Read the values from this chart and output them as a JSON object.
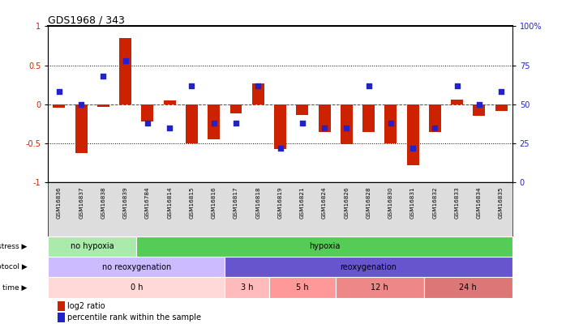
{
  "title": "GDS1968 / 343",
  "samples": [
    "GSM16836",
    "GSM16837",
    "GSM16838",
    "GSM16839",
    "GSM16784",
    "GSM16814",
    "GSM16815",
    "GSM16816",
    "GSM16817",
    "GSM16818",
    "GSM16819",
    "GSM16821",
    "GSM16824",
    "GSM16826",
    "GSM16828",
    "GSM16830",
    "GSM16831",
    "GSM16832",
    "GSM16833",
    "GSM16834",
    "GSM16835"
  ],
  "log2_ratio": [
    -0.04,
    -0.62,
    -0.03,
    0.85,
    -0.22,
    0.05,
    -0.5,
    -0.45,
    -0.12,
    0.27,
    -0.57,
    -0.14,
    -0.35,
    -0.51,
    -0.35,
    -0.5,
    -0.78,
    -0.35,
    0.06,
    -0.15,
    -0.08
  ],
  "percentile": [
    0.58,
    0.5,
    0.68,
    0.78,
    0.38,
    0.35,
    0.62,
    0.38,
    0.38,
    0.62,
    0.22,
    0.38,
    0.35,
    0.35,
    0.62,
    0.38,
    0.22,
    0.35,
    0.62,
    0.5,
    0.58
  ],
  "stress_groups": [
    {
      "label": "no hypoxia",
      "start": 0,
      "end": 4,
      "color": "#aaeaaa"
    },
    {
      "label": "hypoxia",
      "start": 4,
      "end": 21,
      "color": "#55cc55"
    }
  ],
  "protocol_groups": [
    {
      "label": "no reoxygenation",
      "start": 0,
      "end": 8,
      "color": "#ccbbff"
    },
    {
      "label": "reoxygenation",
      "start": 8,
      "end": 21,
      "color": "#6655cc"
    }
  ],
  "time_groups": [
    {
      "label": "0 h",
      "start": 0,
      "end": 8,
      "color": "#ffd8d8"
    },
    {
      "label": "3 h",
      "start": 8,
      "end": 10,
      "color": "#ffbbbb"
    },
    {
      "label": "5 h",
      "start": 10,
      "end": 13,
      "color": "#ff9999"
    },
    {
      "label": "12 h",
      "start": 13,
      "end": 17,
      "color": "#ee8888"
    },
    {
      "label": "24 h",
      "start": 17,
      "end": 21,
      "color": "#dd7777"
    }
  ],
  "bar_color": "#cc2200",
  "dot_color": "#2222cc",
  "zero_line_color": "#cc2200",
  "dot_line_color": "#000000",
  "bg_color": "#ffffff",
  "sample_label_bg": "#dddddd",
  "ylim": [
    -1.0,
    1.0
  ],
  "label_log2": "log2 ratio",
  "label_pct": "percentile rank within the sample"
}
